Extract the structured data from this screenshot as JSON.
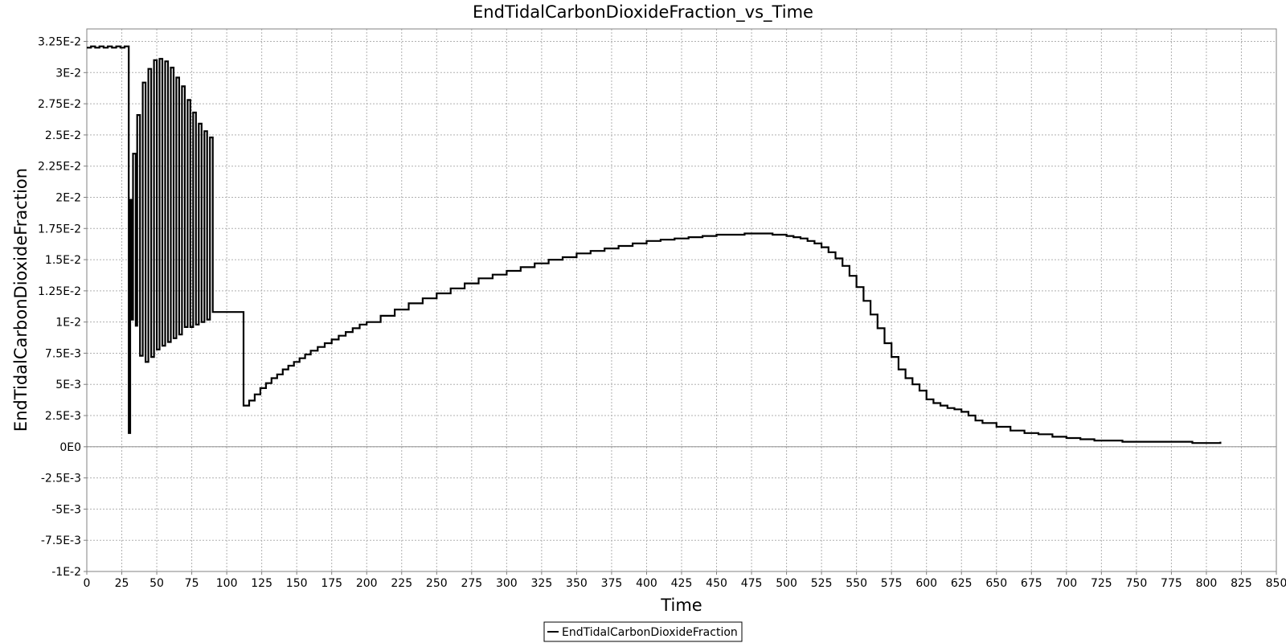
{
  "chart_data": {
    "type": "line",
    "title": "EndTidalCarbonDioxideFraction_vs_Time",
    "xlabel": "Time",
    "ylabel": "EndTidalCarbonDioxideFraction",
    "xlim": [
      0,
      850
    ],
    "ylim": [
      -0.01,
      0.0335
    ],
    "x_ticks": [
      0,
      25,
      50,
      75,
      100,
      125,
      150,
      175,
      200,
      225,
      250,
      275,
      300,
      325,
      350,
      375,
      400,
      425,
      450,
      475,
      500,
      525,
      550,
      575,
      600,
      625,
      650,
      675,
      700,
      725,
      750,
      775,
      800,
      825,
      850
    ],
    "x_tick_labels": [
      "0",
      "25",
      "50",
      "75",
      "100",
      "125",
      "150",
      "175",
      "200",
      "225",
      "250",
      "275",
      "300",
      "325",
      "350",
      "375",
      "400",
      "425",
      "450",
      "475",
      "500",
      "525",
      "550",
      "575",
      "600",
      "625",
      "650",
      "675",
      "700",
      "725",
      "750",
      "775",
      "800",
      "825",
      "850"
    ],
    "y_ticks": [
      -0.01,
      -0.0075,
      -0.005,
      -0.0025,
      0,
      0.0025,
      0.005,
      0.0075,
      0.01,
      0.0125,
      0.015,
      0.0175,
      0.02,
      0.0225,
      0.025,
      0.0275,
      0.03,
      0.0325
    ],
    "y_tick_labels": [
      "-1E-2",
      "-7.5E-3",
      "-5E-3",
      "-2.5E-3",
      "0E0",
      "2.5E-3",
      "5E-3",
      "7.5E-3",
      "1E-2",
      "1.25E-2",
      "1.5E-2",
      "1.75E-2",
      "2E-2",
      "2.25E-2",
      "2.5E-2",
      "2.75E-2",
      "3E-2",
      "3.25E-2"
    ],
    "grid": true,
    "legend_position": "bottom-center",
    "step": true,
    "series": [
      {
        "name": "EndTidalCarbonDioxideFraction",
        "color": "#000000",
        "x": [
          0,
          3,
          6,
          9,
          12,
          15,
          18,
          21,
          24,
          27,
          30,
          30,
          31,
          32,
          33,
          35,
          36,
          38,
          40,
          42,
          44,
          46,
          48,
          50,
          52,
          54,
          56,
          58,
          60,
          62,
          64,
          66,
          68,
          70,
          72,
          74,
          76,
          78,
          80,
          82,
          84,
          86,
          88,
          90,
          92,
          100,
          108,
          112,
          116,
          120,
          124,
          128,
          132,
          136,
          140,
          144,
          148,
          152,
          156,
          160,
          165,
          170,
          175,
          180,
          185,
          190,
          195,
          200,
          210,
          220,
          230,
          240,
          250,
          260,
          270,
          280,
          290,
          300,
          310,
          320,
          330,
          340,
          350,
          360,
          370,
          380,
          390,
          400,
          410,
          420,
          430,
          440,
          450,
          460,
          470,
          480,
          490,
          500,
          505,
          510,
          515,
          520,
          525,
          530,
          535,
          540,
          545,
          550,
          555,
          560,
          565,
          570,
          575,
          580,
          585,
          590,
          595,
          600,
          605,
          610,
          615,
          620,
          625,
          630,
          635,
          640,
          650,
          660,
          670,
          680,
          690,
          700,
          710,
          720,
          730,
          740,
          750,
          760,
          770,
          780,
          790,
          800,
          810
        ],
        "y": [
          0.032,
          0.0321,
          0.032,
          0.0321,
          0.032,
          0.0321,
          0.032,
          0.0321,
          0.032,
          0.0321,
          0.0321,
          0.0011,
          0.0198,
          0.0102,
          0.0235,
          0.0097,
          0.0266,
          0.0073,
          0.0292,
          0.0068,
          0.0303,
          0.0072,
          0.031,
          0.0078,
          0.0311,
          0.0081,
          0.0309,
          0.0084,
          0.0304,
          0.0087,
          0.0296,
          0.009,
          0.0289,
          0.0096,
          0.0278,
          0.0096,
          0.0268,
          0.0098,
          0.0259,
          0.01,
          0.0253,
          0.0102,
          0.0248,
          0.0108,
          0.0108,
          0.0108,
          0.0108,
          0.0033,
          0.0037,
          0.0042,
          0.0047,
          0.0051,
          0.0055,
          0.0058,
          0.0062,
          0.0065,
          0.0068,
          0.0071,
          0.0074,
          0.0077,
          0.008,
          0.0083,
          0.0086,
          0.0089,
          0.0092,
          0.0095,
          0.0098,
          0.01,
          0.0105,
          0.011,
          0.0115,
          0.0119,
          0.0123,
          0.0127,
          0.0131,
          0.0135,
          0.0138,
          0.0141,
          0.0144,
          0.0147,
          0.015,
          0.0152,
          0.0155,
          0.0157,
          0.0159,
          0.0161,
          0.0163,
          0.0165,
          0.0166,
          0.0167,
          0.0168,
          0.0169,
          0.017,
          0.017,
          0.0171,
          0.0171,
          0.017,
          0.0169,
          0.0168,
          0.0167,
          0.0165,
          0.0163,
          0.016,
          0.0156,
          0.0151,
          0.0145,
          0.0137,
          0.0128,
          0.0117,
          0.0106,
          0.0095,
          0.0083,
          0.0072,
          0.0062,
          0.0055,
          0.005,
          0.0045,
          0.0038,
          0.0035,
          0.0033,
          0.0031,
          0.003,
          0.0028,
          0.0025,
          0.0021,
          0.0019,
          0.0016,
          0.0013,
          0.0011,
          0.001,
          0.0008,
          0.0007,
          0.0006,
          0.0005,
          0.0005,
          0.0004,
          0.0004,
          0.0004,
          0.0004,
          0.0004,
          0.0003,
          0.0003,
          0.0004
        ]
      }
    ]
  }
}
